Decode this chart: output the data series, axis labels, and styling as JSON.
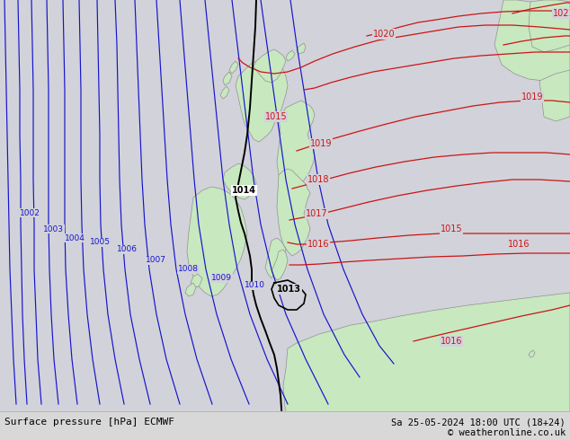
{
  "title_left": "Surface pressure [hPa] ECMWF",
  "title_right": "Sa 25-05-2024 18:00 UTC (18+24)",
  "copyright": "© weatheronline.co.uk",
  "bg_color": "#d2d2da",
  "land_color": "#c8e8c0",
  "blue_color": "#1414cc",
  "red_color": "#cc1414",
  "black_color": "#000000",
  "gray_border": "#909090",
  "bar_color": "#d8d8d8",
  "figsize": [
    6.34,
    4.9
  ],
  "dpi": 100
}
